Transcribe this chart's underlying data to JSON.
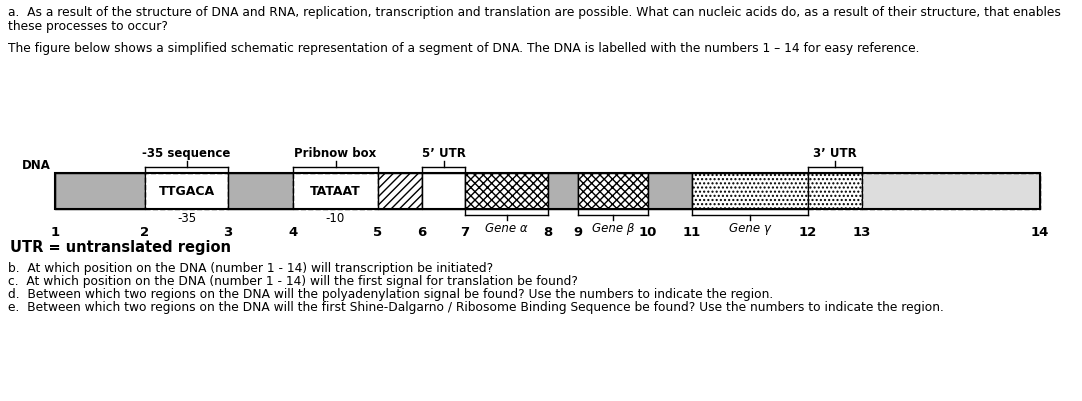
{
  "text_top_a": "a.  As a result of the structure of DNA and RNA, replication, transcription and translation are possible. What can nucleic acids do, as a result of their structure, that enables",
  "text_top_b": "these processes to occur?",
  "text_middle": "The figure below shows a simplified schematic representation of a segment of DNA. The DNA is labelled with the numbers 1 – 14 for easy reference.",
  "label_35seq": "-35 sequence",
  "label_pribnow": "Pribnow box",
  "label_5utr": "5’ UTR",
  "label_3utr": "3’ UTR",
  "dna_label": "DNA",
  "ttgaca_label": "TTGACA",
  "tataat_label": "TATAAT",
  "minus35_label": "-35",
  "minus10_label": "-10",
  "gene_alpha": "Gene α",
  "gene_beta": "Gene β",
  "gene_gamma": "Gene γ",
  "utr_label": "UTR = untranslated region",
  "text_b": "b.  At which position on the DNA (number 1 - 14) will transcription be initiated?",
  "text_c": "c.  At which position on the DNA (number 1 - 14) will the first signal for translation be found?",
  "text_d": "d.  Between which two regions on the DNA will the polyadenylation signal be found? Use the numbers to indicate the region.",
  "text_e": "e.  Between which two regions on the DNA will the first Shine-Dalgarno / Ribosome Binding Sequence be found? Use the numbers to indicate the region.",
  "num_positions": [
    55,
    145,
    228,
    293,
    378,
    422,
    465,
    548,
    578,
    648,
    692,
    808,
    862,
    1040
  ],
  "gray_color": "#b0b0b0",
  "bg_color": "#ffffff"
}
